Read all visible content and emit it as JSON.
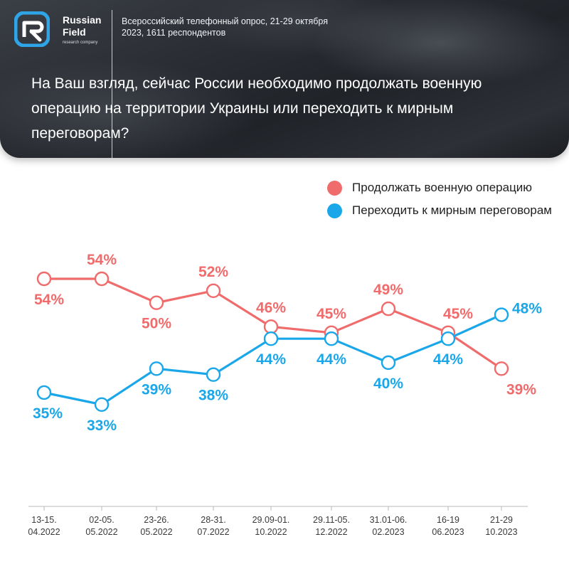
{
  "header": {
    "brand_line1": "Russian",
    "brand_line2": "Field",
    "brand_tagline": "research company",
    "survey_info": "Всероссийский телефонный опрос, 21-29 октября 2023, 1611 респондентов",
    "question": "На Ваш взгляд, сейчас России необходимо продолжать военную операцию на территории Украины или переходить к мирным переговорам?"
  },
  "colors": {
    "continue": "#f06b6b",
    "negotiate": "#1aa7ea",
    "axis": "#b9b9b9"
  },
  "chart_data": {
    "type": "line",
    "categories": [
      [
        "13-15.",
        "04.2022"
      ],
      [
        "02-05.",
        "05.2022"
      ],
      [
        "23-26.",
        "05.2022"
      ],
      [
        "28-31.",
        "07.2022"
      ],
      [
        "29.09-01.",
        "10.2022"
      ],
      [
        "29.11-05.",
        "12.2022"
      ],
      [
        "31.01-06.",
        "02.2023"
      ],
      [
        "16-19",
        "06.2023"
      ],
      [
        "21-29",
        "10.2023"
      ]
    ],
    "series": [
      {
        "name": "Продолжать военную операцию",
        "values": [
          54,
          54,
          50,
          52,
          46,
          45,
          49,
          45,
          39
        ],
        "labels": [
          "54%",
          "54%",
          "50%",
          "52%",
          "46%",
          "45%",
          "49%",
          "45%",
          "39%"
        ],
        "label_side": [
          "below",
          "above",
          "below",
          "above",
          "above",
          "above",
          "above",
          "above",
          "below"
        ]
      },
      {
        "name": "Переходить к мирным переговорам",
        "values": [
          35,
          33,
          39,
          38,
          44,
          44,
          40,
          44,
          48
        ],
        "labels": [
          "35%",
          "33%",
          "39%",
          "38%",
          "44%",
          "44%",
          "40%",
          "44%",
          "48%"
        ],
        "label_side": [
          "below",
          "below",
          "below",
          "below",
          "below",
          "below",
          "below",
          "below",
          "right"
        ]
      }
    ],
    "legend_position": "top-right",
    "grid": false
  }
}
